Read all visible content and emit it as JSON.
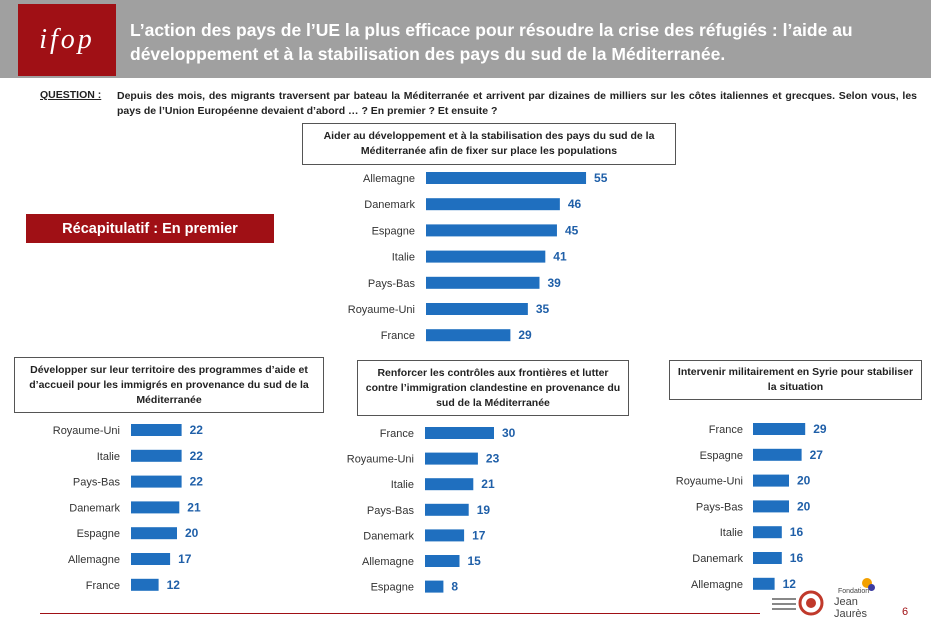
{
  "header": {
    "logo_text": "ifop",
    "title": "L’action des pays de l’UE la plus efficace pour résoudre la crise des réfugiés : l’aide au développement et à la stabilisation des pays du sud de la Méditerranée."
  },
  "question": {
    "label": "QUESTION :",
    "text": "Depuis des mois, des migrants traversent par bateau la Méditerranée et arrivent par dizaines de milliers sur les côtes italiennes et grecques. Selon vous, les pays de l’Union Européenne devaient d’abord … ? En premier ? Et ensuite ?"
  },
  "recap_label": "Récapitulatif : En premier",
  "colors": {
    "bar": "#1f6fbf",
    "brand": "#a01015",
    "value": "#1f5fa8"
  },
  "chart_data": [
    {
      "type": "bar",
      "orientation": "horizontal",
      "title": "Aider au développement et à la stabilisation des pays du sud de la Méditerranée afin de fixer sur place les populations",
      "categories": [
        "Allemagne",
        "Danemark",
        "Espagne",
        "Italie",
        "Pays-Bas",
        "Royaume-Uni",
        "France"
      ],
      "values": [
        55,
        46,
        45,
        41,
        39,
        35,
        29
      ]
    },
    {
      "type": "bar",
      "orientation": "horizontal",
      "title": "Développer sur leur territoire des programmes d’aide et d’accueil pour les immigrés en provenance du sud de la Méditerranée",
      "categories": [
        "Royaume-Uni",
        "Italie",
        "Pays-Bas",
        "Danemark",
        "Espagne",
        "Allemagne",
        "France"
      ],
      "values": [
        22,
        22,
        22,
        21,
        20,
        17,
        12
      ]
    },
    {
      "type": "bar",
      "orientation": "horizontal",
      "title": "Renforcer les contrôles aux frontières et lutter contre l’immigration clandestine en provenance du sud de la Méditerranée",
      "categories": [
        "France",
        "Royaume-Uni",
        "Italie",
        "Pays-Bas",
        "Danemark",
        "Allemagne",
        "Espagne"
      ],
      "values": [
        30,
        23,
        21,
        19,
        17,
        15,
        8
      ]
    },
    {
      "type": "bar",
      "orientation": "horizontal",
      "title": "Intervenir militairement en Syrie pour stabiliser la situation",
      "categories": [
        "France",
        "Espagne",
        "Royaume-Uni",
        "Pays-Bas",
        "Italie",
        "Danemark",
        "Allemagne"
      ],
      "values": [
        29,
        27,
        20,
        20,
        16,
        16,
        12
      ]
    }
  ],
  "footer": {
    "page_number": "6",
    "fjj_line1": "Fondation",
    "fjj_line2": "Jean Jaurès"
  }
}
